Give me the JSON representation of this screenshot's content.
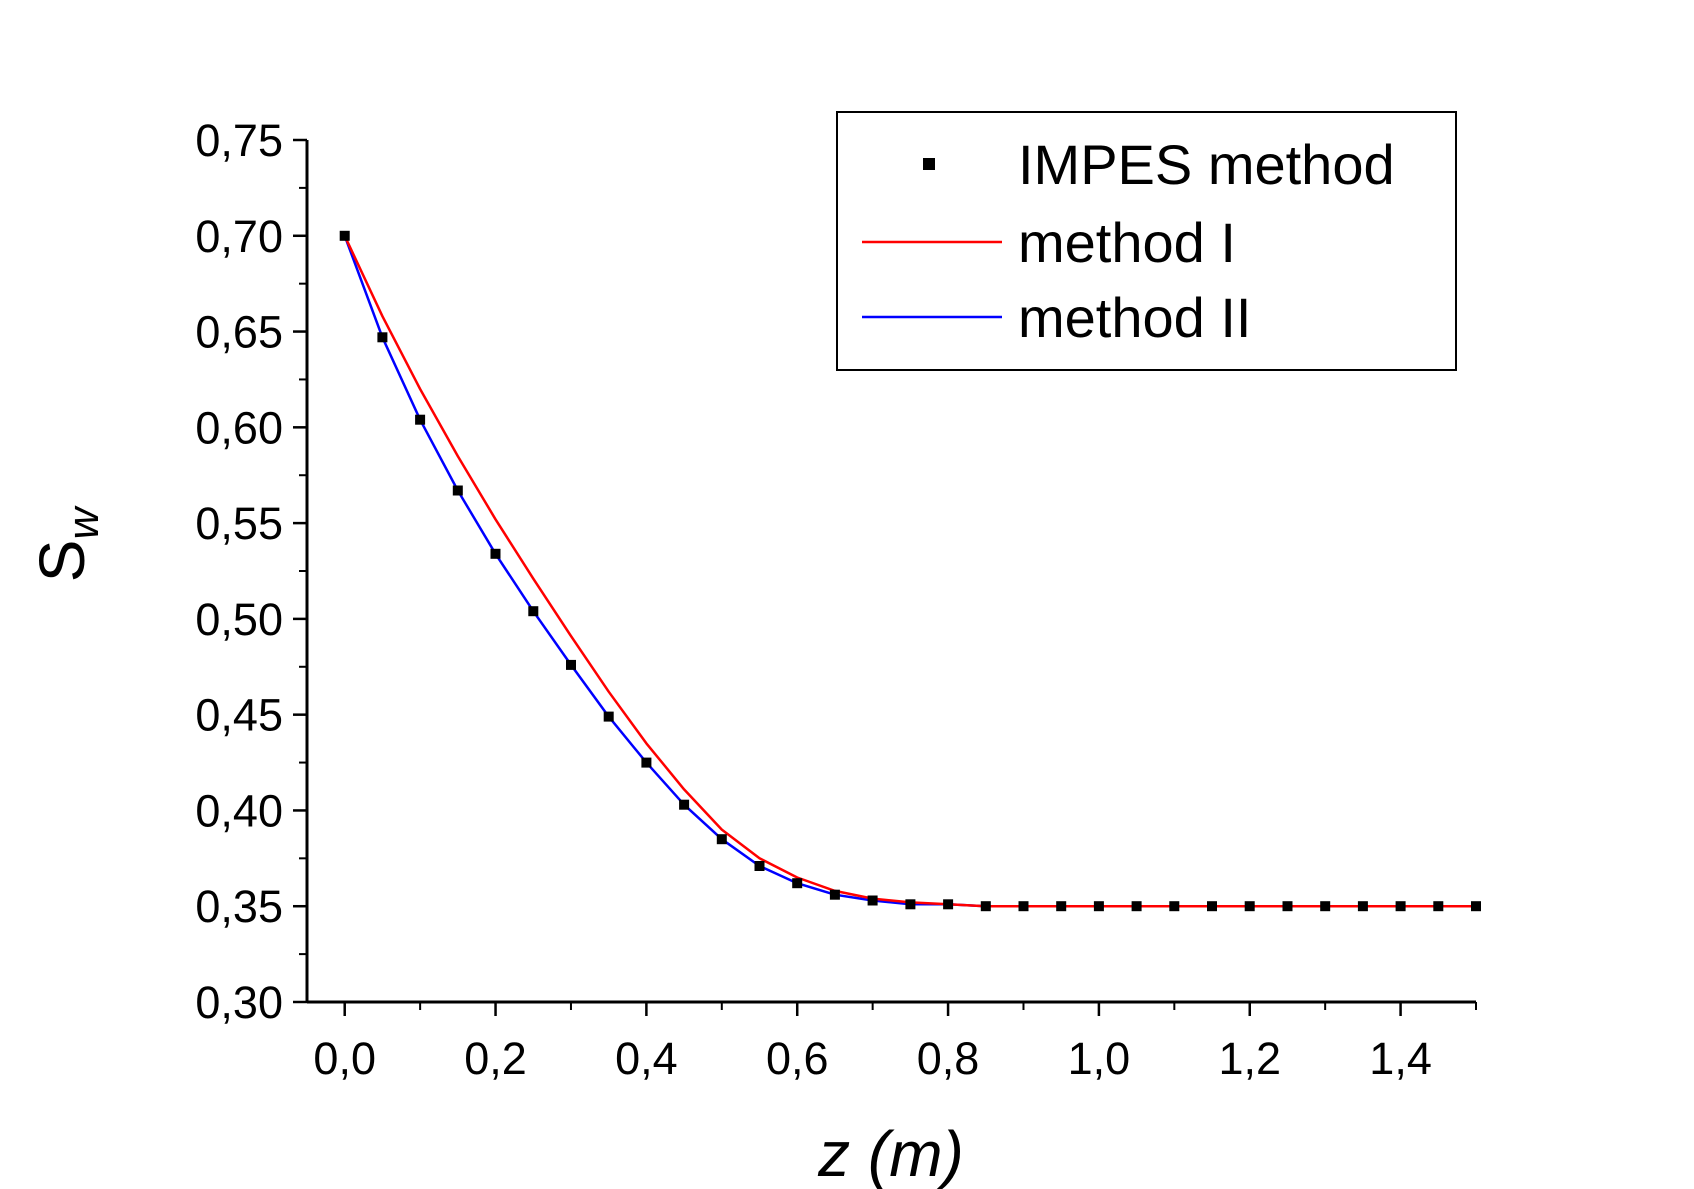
{
  "chart_data": {
    "type": "line",
    "xlabel": "z (m)",
    "ylabel": "S",
    "ylabel_subscript": "w",
    "xlim": [
      -0.05,
      1.5
    ],
    "ylim": [
      0.3,
      0.75
    ],
    "x_ticks": [
      "0,0",
      "0,2",
      "0,4",
      "0,6",
      "0,8",
      "1,0",
      "1,2",
      "1,4"
    ],
    "y_ticks": [
      "0,30",
      "0,35",
      "0,40",
      "0,45",
      "0,50",
      "0,55",
      "0,60",
      "0,65",
      "0,70",
      "0,75"
    ],
    "x": [
      0.0,
      0.05,
      0.1,
      0.15,
      0.2,
      0.25,
      0.3,
      0.35,
      0.4,
      0.45,
      0.5,
      0.55,
      0.6,
      0.65,
      0.7,
      0.75,
      0.8,
      0.85,
      0.9,
      0.95,
      1.0,
      1.05,
      1.1,
      1.15,
      1.2,
      1.25,
      1.3,
      1.35,
      1.4,
      1.45,
      1.5
    ],
    "series": [
      {
        "name": "IMPES method",
        "style": "markers",
        "color": "#000000",
        "values": [
          0.7,
          0.647,
          0.604,
          0.567,
          0.534,
          0.504,
          0.476,
          0.449,
          0.425,
          0.403,
          0.385,
          0.371,
          0.362,
          0.356,
          0.353,
          0.351,
          0.351,
          0.35,
          0.35,
          0.35,
          0.35,
          0.35,
          0.35,
          0.35,
          0.35,
          0.35,
          0.35,
          0.35,
          0.35,
          0.35,
          0.35
        ]
      },
      {
        "name": "method I",
        "style": "line",
        "color": "#ff0000",
        "values": [
          0.7,
          0.658,
          0.62,
          0.585,
          0.552,
          0.521,
          0.491,
          0.462,
          0.435,
          0.411,
          0.39,
          0.375,
          0.365,
          0.358,
          0.354,
          0.352,
          0.351,
          0.35,
          0.35,
          0.35,
          0.35,
          0.35,
          0.35,
          0.35,
          0.35,
          0.35,
          0.35,
          0.35,
          0.35,
          0.35,
          0.35
        ]
      },
      {
        "name": "method II",
        "style": "line",
        "color": "#0000ff",
        "values": [
          0.7,
          0.647,
          0.604,
          0.567,
          0.534,
          0.504,
          0.476,
          0.449,
          0.425,
          0.403,
          0.385,
          0.371,
          0.362,
          0.356,
          0.353,
          0.351,
          0.351,
          0.35,
          0.35,
          0.35,
          0.35,
          0.35,
          0.35,
          0.35,
          0.35,
          0.35,
          0.35,
          0.35,
          0.35,
          0.35,
          0.35
        ]
      }
    ],
    "legend": {
      "placement": "top-right",
      "entries": [
        "IMPES method",
        "method I",
        "method II"
      ]
    },
    "grid": false
  }
}
